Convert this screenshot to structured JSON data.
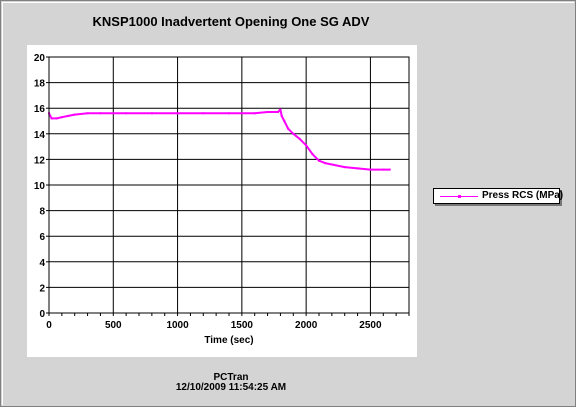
{
  "chart_data": {
    "type": "line",
    "title": "KNSP1000 Inadvertent Opening One SG ADV",
    "xlabel": "Time (sec)",
    "ylabel": "",
    "xlim": [
      0,
      2800
    ],
    "ylim": [
      0,
      20
    ],
    "x_ticks": [
      0,
      500,
      1000,
      1500,
      2000,
      2500
    ],
    "y_ticks": [
      0,
      2,
      4,
      6,
      8,
      10,
      12,
      14,
      16,
      18,
      20
    ],
    "grid": true,
    "legend_position": "right",
    "series": [
      {
        "name": "Press RCS (MPa)",
        "color": "#ff00ff",
        "x": [
          0,
          20,
          60,
          100,
          150,
          200,
          300,
          400,
          600,
          800,
          1000,
          1200,
          1400,
          1600,
          1700,
          1780,
          1800,
          1810,
          1830,
          1860,
          1900,
          1950,
          2000,
          2050,
          2100,
          2150,
          2200,
          2300,
          2400,
          2500,
          2600,
          2650
        ],
        "values": [
          15.6,
          15.2,
          15.2,
          15.3,
          15.4,
          15.5,
          15.6,
          15.6,
          15.6,
          15.6,
          15.6,
          15.6,
          15.6,
          15.6,
          15.7,
          15.7,
          15.9,
          15.4,
          15.0,
          14.4,
          14.0,
          13.6,
          13.1,
          12.4,
          11.9,
          11.7,
          11.6,
          11.4,
          11.3,
          11.2,
          11.2,
          11.2
        ]
      }
    ]
  },
  "footer": {
    "app": "PCTran",
    "timestamp": "12/10/2009 11:54:25 AM"
  }
}
